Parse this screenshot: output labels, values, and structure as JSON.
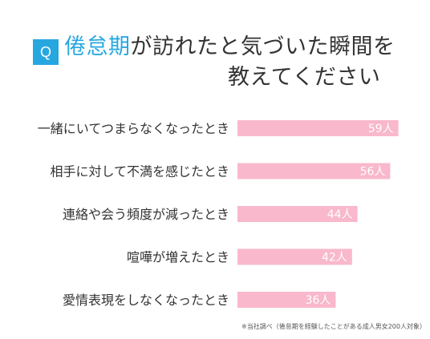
{
  "question": {
    "badge": "Q",
    "title_keyword": "倦怠期",
    "title_line1_rest": "が訪れたと気づいた瞬間を",
    "title_line2": "教えてください"
  },
  "chart_data": {
    "type": "bar",
    "orientation": "horizontal",
    "categories": [
      "一緒にいてつまらなくなったとき",
      "相手に対して不満を感じたとき",
      "連絡や会う頻度が減ったとき",
      "喧嘩が増えたとき",
      "愛情表現をしなくなったとき"
    ],
    "values": [
      59,
      56,
      44,
      42,
      36
    ],
    "value_labels": [
      "59人",
      "56人",
      "44人",
      "42人",
      "36人"
    ],
    "unit": "人",
    "xlim": [
      0,
      60
    ],
    "grid": false,
    "legend": "none",
    "bar_color": "#f9b8cc",
    "label_color": "#ffffff"
  },
  "footnote": "※当社調べ（倦怠期を経験したことがある成人男女200人対象）",
  "colors": {
    "accent": "#27a7e0",
    "bar": "#f9b8cc",
    "text": "#333333"
  }
}
